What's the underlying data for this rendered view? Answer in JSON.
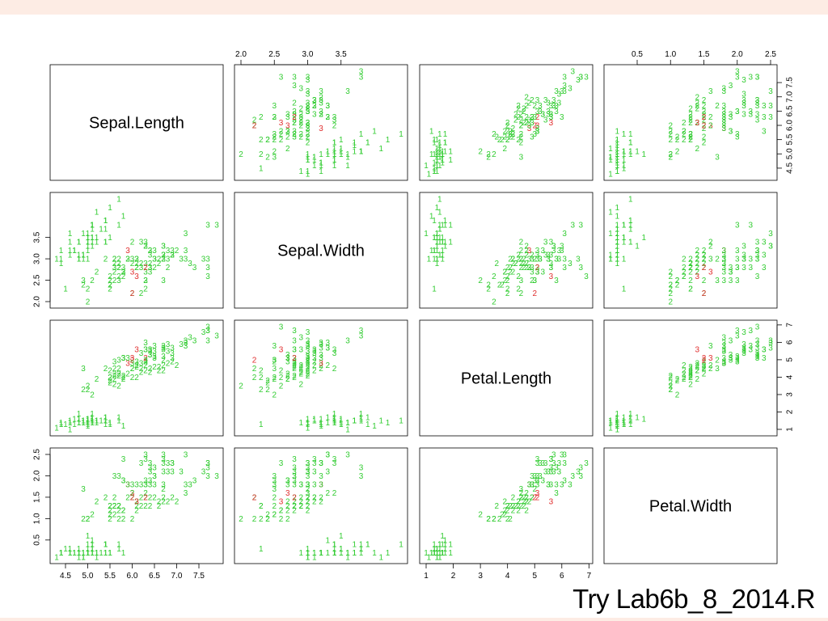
{
  "caption": "Try Lab6b_8_2014.R",
  "colors": {
    "background": "#fdece4",
    "slide": "#ffffff",
    "setosa": "#33cc33",
    "versicolor": "#33cc33",
    "virginica": "#33cc33",
    "highlight": "#e03030"
  },
  "chart_data": {
    "type": "scatter",
    "variables": [
      "Sepal.Length",
      "Sepal.Width",
      "Petal.Length",
      "Petal.Width"
    ],
    "ticks": {
      "Sepal.Length": [
        "4.5",
        "5.0",
        "5.5",
        "6.0",
        "6.5",
        "7.0",
        "7.5"
      ],
      "Sepal.Width": [
        "2.0",
        "2.5",
        "3.0",
        "3.5"
      ],
      "Petal.Length": [
        "1",
        "2",
        "3",
        "4",
        "5",
        "6",
        "7"
      ],
      "Petal.Width": [
        "0.5",
        "1.0",
        "1.5",
        "2.0",
        "2.5"
      ]
    },
    "ranges": {
      "Sepal.Length": [
        4.3,
        7.9
      ],
      "Sepal.Width": [
        2.0,
        4.4
      ],
      "Petal.Length": [
        1.0,
        6.9
      ],
      "Petal.Width": [
        0.1,
        2.5
      ]
    },
    "grid": false,
    "legend": "none",
    "point_labels": "class number (1, 2, 3)",
    "points": [
      [
        5.1,
        3.5,
        1.4,
        0.2,
        1
      ],
      [
        4.9,
        3.0,
        1.4,
        0.2,
        1
      ],
      [
        4.7,
        3.2,
        1.3,
        0.2,
        1
      ],
      [
        4.6,
        3.1,
        1.5,
        0.2,
        1
      ],
      [
        5.0,
        3.6,
        1.4,
        0.2,
        1
      ],
      [
        5.4,
        3.9,
        1.7,
        0.4,
        1
      ],
      [
        4.6,
        3.4,
        1.4,
        0.3,
        1
      ],
      [
        5.0,
        3.4,
        1.5,
        0.2,
        1
      ],
      [
        4.4,
        2.9,
        1.4,
        0.2,
        1
      ],
      [
        4.9,
        3.1,
        1.5,
        0.1,
        1
      ],
      [
        5.4,
        3.7,
        1.5,
        0.2,
        1
      ],
      [
        4.8,
        3.4,
        1.6,
        0.2,
        1
      ],
      [
        4.8,
        3.0,
        1.4,
        0.1,
        1
      ],
      [
        4.3,
        3.0,
        1.1,
        0.1,
        1
      ],
      [
        5.8,
        4.0,
        1.2,
        0.2,
        1
      ],
      [
        5.7,
        4.4,
        1.5,
        0.4,
        1
      ],
      [
        5.4,
        3.9,
        1.3,
        0.4,
        1
      ],
      [
        5.1,
        3.5,
        1.4,
        0.3,
        1
      ],
      [
        5.7,
        3.8,
        1.7,
        0.3,
        1
      ],
      [
        5.1,
        3.8,
        1.5,
        0.3,
        1
      ],
      [
        5.4,
        3.4,
        1.7,
        0.2,
        1
      ],
      [
        5.1,
        3.7,
        1.5,
        0.4,
        1
      ],
      [
        4.6,
        3.6,
        1.0,
        0.2,
        1
      ],
      [
        5.1,
        3.3,
        1.7,
        0.5,
        1
      ],
      [
        4.8,
        3.4,
        1.9,
        0.2,
        1
      ],
      [
        5.0,
        3.0,
        1.6,
        0.2,
        1
      ],
      [
        5.0,
        3.4,
        1.6,
        0.4,
        1
      ],
      [
        5.2,
        3.5,
        1.5,
        0.2,
        1
      ],
      [
        5.2,
        3.4,
        1.4,
        0.2,
        1
      ],
      [
        4.7,
        3.2,
        1.6,
        0.2,
        1
      ],
      [
        4.8,
        3.1,
        1.6,
        0.2,
        1
      ],
      [
        5.4,
        3.4,
        1.5,
        0.4,
        1
      ],
      [
        5.2,
        4.1,
        1.5,
        0.1,
        1
      ],
      [
        5.5,
        4.2,
        1.4,
        0.2,
        1
      ],
      [
        4.9,
        3.1,
        1.5,
        0.2,
        1
      ],
      [
        5.0,
        3.2,
        1.2,
        0.2,
        1
      ],
      [
        5.5,
        3.5,
        1.3,
        0.2,
        1
      ],
      [
        4.9,
        3.6,
        1.4,
        0.1,
        1
      ],
      [
        4.4,
        3.0,
        1.3,
        0.2,
        1
      ],
      [
        5.1,
        3.4,
        1.5,
        0.2,
        1
      ],
      [
        5.0,
        3.5,
        1.3,
        0.3,
        1
      ],
      [
        4.5,
        2.3,
        1.3,
        0.3,
        1
      ],
      [
        4.4,
        3.2,
        1.3,
        0.2,
        1
      ],
      [
        5.0,
        3.5,
        1.6,
        0.6,
        1
      ],
      [
        5.1,
        3.8,
        1.9,
        0.4,
        1
      ],
      [
        4.8,
        3.0,
        1.4,
        0.3,
        1
      ],
      [
        5.1,
        3.8,
        1.6,
        0.2,
        1
      ],
      [
        4.6,
        3.2,
        1.4,
        0.2,
        1
      ],
      [
        5.3,
        3.7,
        1.5,
        0.2,
        1
      ],
      [
        5.0,
        3.3,
        1.4,
        0.2,
        1
      ],
      [
        7.0,
        3.2,
        4.7,
        1.4,
        2
      ],
      [
        6.4,
        3.2,
        4.5,
        1.5,
        2
      ],
      [
        6.9,
        3.1,
        4.9,
        1.5,
        2
      ],
      [
        5.5,
        2.3,
        4.0,
        1.3,
        2
      ],
      [
        6.5,
        2.8,
        4.6,
        1.5,
        2
      ],
      [
        5.7,
        2.8,
        4.5,
        1.3,
        2
      ],
      [
        6.3,
        3.3,
        4.7,
        1.6,
        2
      ],
      [
        4.9,
        2.4,
        3.3,
        1.0,
        2
      ],
      [
        6.6,
        2.9,
        4.6,
        1.3,
        2
      ],
      [
        5.2,
        2.7,
        3.9,
        1.4,
        2
      ],
      [
        5.0,
        2.0,
        3.5,
        1.0,
        2
      ],
      [
        5.9,
        3.0,
        4.2,
        1.5,
        2
      ],
      [
        6.0,
        2.2,
        4.0,
        1.0,
        2
      ],
      [
        6.1,
        2.9,
        4.7,
        1.4,
        2
      ],
      [
        5.6,
        2.9,
        3.6,
        1.3,
        2
      ],
      [
        6.7,
        3.1,
        4.4,
        1.4,
        2
      ],
      [
        5.6,
        3.0,
        4.5,
        1.5,
        2
      ],
      [
        5.8,
        2.7,
        4.1,
        1.0,
        2
      ],
      [
        6.2,
        2.2,
        4.5,
        1.5,
        2
      ],
      [
        5.6,
        2.5,
        3.9,
        1.1,
        2
      ],
      [
        5.9,
        3.2,
        4.8,
        1.8,
        3
      ],
      [
        6.1,
        2.8,
        4.0,
        1.3,
        2
      ],
      [
        6.3,
        2.5,
        4.9,
        1.5,
        2
      ],
      [
        6.1,
        2.8,
        4.7,
        1.2,
        2
      ],
      [
        6.4,
        2.9,
        4.3,
        1.3,
        2
      ],
      [
        6.6,
        3.0,
        4.4,
        1.4,
        2
      ],
      [
        6.8,
        2.8,
        4.8,
        1.4,
        2
      ],
      [
        6.7,
        3.0,
        5.0,
        1.7,
        2
      ],
      [
        6.0,
        2.9,
        4.5,
        1.5,
        2
      ],
      [
        5.7,
        2.6,
        3.5,
        1.0,
        2
      ],
      [
        5.5,
        2.4,
        3.8,
        1.1,
        2
      ],
      [
        5.5,
        2.4,
        3.7,
        1.0,
        2
      ],
      [
        5.8,
        2.7,
        3.9,
        1.2,
        2
      ],
      [
        6.0,
        2.7,
        5.1,
        1.6,
        3
      ],
      [
        5.4,
        3.0,
        4.5,
        1.5,
        2
      ],
      [
        6.0,
        3.4,
        4.5,
        1.6,
        2
      ],
      [
        6.7,
        3.1,
        4.7,
        1.5,
        2
      ],
      [
        6.3,
        2.3,
        4.4,
        1.3,
        2
      ],
      [
        5.6,
        3.0,
        4.1,
        1.3,
        2
      ],
      [
        5.5,
        2.5,
        4.0,
        1.3,
        2
      ],
      [
        5.5,
        2.6,
        4.4,
        1.2,
        2
      ],
      [
        6.1,
        3.0,
        4.6,
        1.4,
        2
      ],
      [
        5.8,
        2.6,
        4.0,
        1.2,
        2
      ],
      [
        5.0,
        2.3,
        3.3,
        1.0,
        2
      ],
      [
        5.6,
        2.7,
        4.2,
        1.3,
        2
      ],
      [
        5.7,
        3.0,
        4.2,
        1.2,
        2
      ],
      [
        5.7,
        2.9,
        4.2,
        1.3,
        2
      ],
      [
        6.2,
        2.9,
        4.3,
        1.3,
        2
      ],
      [
        5.1,
        2.5,
        3.0,
        1.1,
        2
      ],
      [
        5.7,
        2.8,
        4.1,
        1.3,
        2
      ],
      [
        6.3,
        3.3,
        6.0,
        2.5,
        3
      ],
      [
        5.8,
        2.7,
        5.1,
        1.9,
        3
      ],
      [
        7.1,
        3.0,
        5.9,
        2.1,
        3
      ],
      [
        6.3,
        2.9,
        5.6,
        1.8,
        3
      ],
      [
        6.5,
        3.0,
        5.8,
        2.2,
        3
      ],
      [
        7.6,
        3.0,
        6.6,
        2.1,
        3
      ],
      [
        4.9,
        2.5,
        4.5,
        1.7,
        3
      ],
      [
        7.3,
        2.9,
        6.3,
        1.8,
        3
      ],
      [
        6.7,
        2.5,
        5.8,
        1.8,
        3
      ],
      [
        7.2,
        3.6,
        6.1,
        2.5,
        3
      ],
      [
        6.5,
        3.2,
        5.1,
        2.0,
        3
      ],
      [
        6.4,
        2.7,
        5.3,
        1.9,
        3
      ],
      [
        6.8,
        3.0,
        5.5,
        2.1,
        3
      ],
      [
        5.7,
        2.5,
        5.0,
        2.0,
        3
      ],
      [
        5.8,
        2.8,
        5.1,
        2.4,
        3
      ],
      [
        6.4,
        3.2,
        5.3,
        2.3,
        3
      ],
      [
        6.5,
        3.0,
        5.5,
        1.8,
        3
      ],
      [
        7.7,
        3.8,
        6.7,
        2.2,
        3
      ],
      [
        7.7,
        2.6,
        6.9,
        2.3,
        3
      ],
      [
        6.0,
        2.2,
        5.0,
        1.5,
        2
      ],
      [
        6.9,
        3.2,
        5.7,
        2.3,
        3
      ],
      [
        5.6,
        2.8,
        4.9,
        2.0,
        3
      ],
      [
        7.7,
        2.8,
        6.7,
        2.0,
        3
      ],
      [
        6.3,
        2.7,
        4.9,
        1.8,
        3
      ],
      [
        6.7,
        3.3,
        5.7,
        2.1,
        3
      ],
      [
        7.2,
        3.2,
        6.0,
        1.8,
        3
      ],
      [
        6.2,
        2.8,
        4.8,
        1.8,
        3
      ],
      [
        6.1,
        3.0,
        4.9,
        1.8,
        3
      ],
      [
        6.4,
        2.8,
        5.6,
        2.1,
        3
      ],
      [
        7.2,
        3.0,
        5.8,
        1.6,
        3
      ],
      [
        7.4,
        2.8,
        6.1,
        1.9,
        3
      ],
      [
        7.9,
        3.8,
        6.4,
        2.0,
        3
      ],
      [
        6.4,
        2.8,
        5.6,
        2.2,
        3
      ],
      [
        6.3,
        2.8,
        5.1,
        1.5,
        2
      ],
      [
        6.1,
        2.6,
        5.6,
        1.4,
        3
      ],
      [
        7.7,
        3.0,
        6.1,
        2.3,
        3
      ],
      [
        6.3,
        3.4,
        5.6,
        2.4,
        3
      ],
      [
        6.4,
        3.1,
        5.5,
        1.8,
        3
      ],
      [
        6.0,
        3.0,
        4.8,
        1.8,
        3
      ],
      [
        6.9,
        3.1,
        5.4,
        2.1,
        3
      ],
      [
        6.7,
        3.1,
        5.6,
        2.4,
        3
      ],
      [
        6.9,
        3.1,
        5.1,
        2.3,
        3
      ],
      [
        5.8,
        2.7,
        5.1,
        1.9,
        3
      ],
      [
        6.8,
        3.2,
        5.9,
        2.3,
        3
      ],
      [
        6.7,
        3.3,
        5.7,
        2.5,
        3
      ],
      [
        6.7,
        3.0,
        5.2,
        2.3,
        3
      ],
      [
        6.3,
        2.5,
        5.0,
        1.9,
        3
      ],
      [
        6.5,
        3.0,
        5.2,
        2.0,
        3
      ],
      [
        6.2,
        3.4,
        5.4,
        2.3,
        3
      ],
      [
        5.9,
        3.0,
        5.1,
        1.8,
        3
      ]
    ],
    "highlighted": [
      [
        5.9,
        3.2,
        4.8,
        1.8,
        3
      ],
      [
        6.0,
        2.7,
        5.1,
        1.6,
        3
      ],
      [
        6.0,
        2.2,
        5.0,
        1.5,
        2
      ],
      [
        6.3,
        2.8,
        5.1,
        1.5,
        2
      ],
      [
        6.1,
        2.6,
        5.6,
        1.4,
        3
      ]
    ]
  }
}
